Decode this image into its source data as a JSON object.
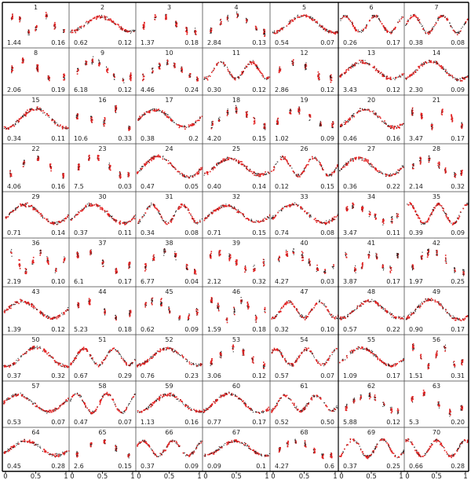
{
  "chart_data": {
    "type": "scatter",
    "layout": "grid 7 columns x 10 rows of phase-folded light curves",
    "x_ticks": [
      "0",
      "0.5",
      "1"
    ],
    "series_colors": {
      "observed": "#222222",
      "model": "#e32222"
    },
    "panels": [
      {
        "id": "1",
        "left": "1.44",
        "right": "0.16"
      },
      {
        "id": "2",
        "left": "0.62",
        "right": "0.12"
      },
      {
        "id": "3",
        "left": "1.37",
        "right": "0.18"
      },
      {
        "id": "4",
        "left": "2.84",
        "right": "0.13"
      },
      {
        "id": "5",
        "left": "0.54",
        "right": "0.07"
      },
      {
        "id": "6",
        "left": "0.26",
        "right": "0.17"
      },
      {
        "id": "7",
        "left": "0.38",
        "right": "0.08"
      },
      {
        "id": "8",
        "left": "2.06",
        "right": "0.19"
      },
      {
        "id": "9",
        "left": "6.18",
        "right": "0.12"
      },
      {
        "id": "10",
        "left": "4.46",
        "right": "0.24"
      },
      {
        "id": "11",
        "left": "0.30",
        "right": "0.12"
      },
      {
        "id": "12",
        "left": "2.86",
        "right": "0.12"
      },
      {
        "id": "13",
        "left": "3.43",
        "right": "0.12"
      },
      {
        "id": "14",
        "left": "2.30",
        "right": "0.09"
      },
      {
        "id": "15",
        "left": "0.34",
        "right": "0.11"
      },
      {
        "id": "16",
        "left": "10.6",
        "right": "0.33"
      },
      {
        "id": "17",
        "left": "0.38",
        "right": "0.2"
      },
      {
        "id": "18",
        "left": "4.20",
        "right": "0.15"
      },
      {
        "id": "19",
        "left": "1.02",
        "right": "0.09"
      },
      {
        "id": "20",
        "left": "0.46",
        "right": "0.16"
      },
      {
        "id": "21",
        "left": "3.47",
        "right": "0.17"
      },
      {
        "id": "22",
        "left": "4.06",
        "right": "0.16"
      },
      {
        "id": "23",
        "left": "7.5",
        "right": "0.03"
      },
      {
        "id": "24",
        "left": "0.47",
        "right": "0.05"
      },
      {
        "id": "25",
        "left": "0.40",
        "right": "0.14"
      },
      {
        "id": "26",
        "left": "0.12",
        "right": "0.15"
      },
      {
        "id": "27",
        "left": "0.36",
        "right": "0.22"
      },
      {
        "id": "28",
        "left": "2.14",
        "right": "0.32"
      },
      {
        "id": "29",
        "left": "0.71",
        "right": "0.14"
      },
      {
        "id": "30",
        "left": "0.37",
        "right": "0.11"
      },
      {
        "id": "31",
        "left": "0.34",
        "right": "0.08"
      },
      {
        "id": "32",
        "left": "0.71",
        "right": "0.15"
      },
      {
        "id": "33",
        "left": "0.74",
        "right": "0.08"
      },
      {
        "id": "34",
        "left": "3.47",
        "right": "0.11"
      },
      {
        "id": "35",
        "left": "0.39",
        "right": "0.09"
      },
      {
        "id": "36",
        "left": "2.19",
        "right": "0.10"
      },
      {
        "id": "37",
        "left": "6.1",
        "right": "0.17"
      },
      {
        "id": "38",
        "left": "6.77",
        "right": "0.04"
      },
      {
        "id": "39",
        "left": "2.12",
        "right": "0.32"
      },
      {
        "id": "40",
        "left": "4.27",
        "right": "0.03"
      },
      {
        "id": "41",
        "left": "3.87",
        "right": "0.17"
      },
      {
        "id": "42",
        "left": "1.97",
        "right": "0.25"
      },
      {
        "id": "43",
        "left": "1.39",
        "right": "0.12"
      },
      {
        "id": "44",
        "left": "5.23",
        "right": "0.18"
      },
      {
        "id": "45",
        "left": "0.62",
        "right": "0.09"
      },
      {
        "id": "46",
        "left": "1.59",
        "right": "0.18"
      },
      {
        "id": "47",
        "left": "0.32",
        "right": "0.10"
      },
      {
        "id": "48",
        "left": "0.57",
        "right": "0.22"
      },
      {
        "id": "49",
        "left": "0.90",
        "right": "0.17"
      },
      {
        "id": "50",
        "left": "0.37",
        "right": "0.32"
      },
      {
        "id": "51",
        "left": "0.67",
        "right": "0.29"
      },
      {
        "id": "52",
        "left": "0.76",
        "right": "0.23"
      },
      {
        "id": "53",
        "left": "3.06",
        "right": "0.12"
      },
      {
        "id": "54",
        "left": "0.57",
        "right": "0.07"
      },
      {
        "id": "55",
        "left": "1.09",
        "right": "0.17"
      },
      {
        "id": "56",
        "left": "1.51",
        "right": "0.31"
      },
      {
        "id": "57",
        "left": "0.53",
        "right": "0.07"
      },
      {
        "id": "58",
        "left": "0.47",
        "right": "0.07"
      },
      {
        "id": "59",
        "left": "1.13",
        "right": "0.16"
      },
      {
        "id": "60",
        "left": "0.77",
        "right": "0.17"
      },
      {
        "id": "61",
        "left": "0.52",
        "right": "0.50"
      },
      {
        "id": "62",
        "left": "5.88",
        "right": "0.12"
      },
      {
        "id": "63",
        "left": "5.3",
        "right": "0.20"
      },
      {
        "id": "64",
        "left": "0.45",
        "right": "0.28"
      },
      {
        "id": "65",
        "left": "2.6",
        "right": "0.15"
      },
      {
        "id": "66",
        "left": "0.37",
        "right": "0.09"
      },
      {
        "id": "67",
        "left": "0.09",
        "right": "0.1"
      },
      {
        "id": "68",
        "left": "4.27",
        "right": "0.6"
      },
      {
        "id": "69",
        "left": "0.37",
        "right": "0.25"
      },
      {
        "id": "70",
        "left": "0.66",
        "right": "0.28"
      }
    ]
  }
}
